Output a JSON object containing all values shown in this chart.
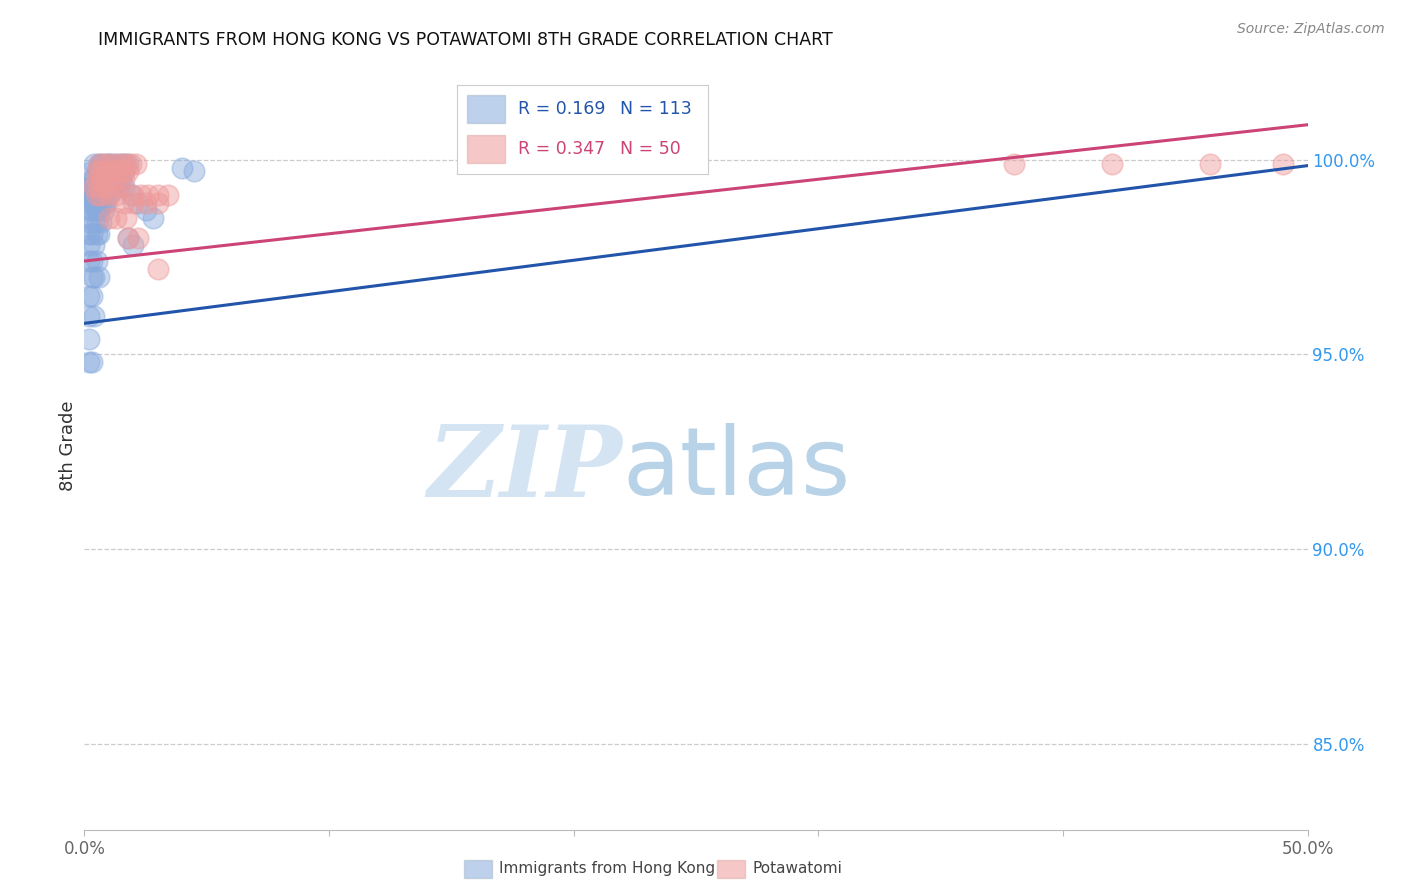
{
  "title": "IMMIGRANTS FROM HONG KONG VS POTAWATOMI 8TH GRADE CORRELATION CHART",
  "source": "Source: ZipAtlas.com",
  "ylabel": "8th Grade",
  "right_yticks": [
    0.85,
    0.9,
    0.95,
    1.0
  ],
  "right_yticklabels": [
    "85.0%",
    "90.0%",
    "95.0%",
    "100.0%"
  ],
  "xticks": [
    0.0,
    0.1,
    0.2,
    0.3,
    0.4,
    0.5
  ],
  "xticklabels": [
    "0.0%",
    "",
    "",
    "",
    "",
    "50.0%"
  ],
  "legend1_R": "0.169",
  "legend1_N": "113",
  "legend2_R": "0.347",
  "legend2_N": "50",
  "blue_color": "#88AADD",
  "pink_color": "#EE9999",
  "blue_line_color": "#2255AA",
  "pink_line_color": "#CC4477",
  "xmin": 0.0,
  "xmax": 0.5,
  "ymin": 0.828,
  "ymax": 1.025,
  "blue_trendline_x": [
    0.0,
    0.5
  ],
  "blue_trendline_y": [
    0.958,
    0.9985
  ],
  "pink_trendline_x": [
    0.0,
    0.5
  ],
  "pink_trendline_y": [
    0.974,
    1.009
  ],
  "blue_x": [
    0.004,
    0.006,
    0.007,
    0.009,
    0.01,
    0.011,
    0.013,
    0.015,
    0.016,
    0.018,
    0.003,
    0.005,
    0.007,
    0.009,
    0.011,
    0.012,
    0.014,
    0.016,
    0.003,
    0.004,
    0.006,
    0.008,
    0.01,
    0.012,
    0.013,
    0.015,
    0.002,
    0.003,
    0.005,
    0.006,
    0.007,
    0.009,
    0.01,
    0.011,
    0.013,
    0.014,
    0.002,
    0.003,
    0.004,
    0.006,
    0.007,
    0.009,
    0.01,
    0.002,
    0.003,
    0.004,
    0.005,
    0.007,
    0.008,
    0.009,
    0.002,
    0.003,
    0.005,
    0.006,
    0.008,
    0.002,
    0.004,
    0.005,
    0.007,
    0.002,
    0.003,
    0.005,
    0.006,
    0.002,
    0.004,
    0.002,
    0.003,
    0.005,
    0.003,
    0.004,
    0.006,
    0.002,
    0.003,
    0.002,
    0.004,
    0.002,
    0.002,
    0.003,
    0.016,
    0.019,
    0.022,
    0.025,
    0.028,
    0.018,
    0.02,
    0.04,
    0.045
  ],
  "blue_y": [
    0.999,
    0.999,
    0.999,
    0.999,
    0.999,
    0.999,
    0.999,
    0.999,
    0.999,
    0.999,
    0.997,
    0.997,
    0.997,
    0.997,
    0.997,
    0.997,
    0.997,
    0.997,
    0.995,
    0.995,
    0.995,
    0.995,
    0.995,
    0.995,
    0.995,
    0.995,
    0.993,
    0.993,
    0.993,
    0.993,
    0.993,
    0.993,
    0.993,
    0.993,
    0.993,
    0.993,
    0.991,
    0.991,
    0.991,
    0.991,
    0.991,
    0.991,
    0.991,
    0.989,
    0.989,
    0.989,
    0.989,
    0.989,
    0.989,
    0.989,
    0.987,
    0.987,
    0.987,
    0.987,
    0.987,
    0.984,
    0.984,
    0.984,
    0.984,
    0.981,
    0.981,
    0.981,
    0.981,
    0.978,
    0.978,
    0.974,
    0.974,
    0.974,
    0.97,
    0.97,
    0.97,
    0.965,
    0.965,
    0.96,
    0.96,
    0.954,
    0.948,
    0.948,
    0.993,
    0.991,
    0.989,
    0.987,
    0.985,
    0.98,
    0.978,
    0.998,
    0.997
  ],
  "pink_x": [
    0.006,
    0.008,
    0.01,
    0.013,
    0.015,
    0.017,
    0.019,
    0.021,
    0.005,
    0.007,
    0.009,
    0.011,
    0.014,
    0.016,
    0.018,
    0.005,
    0.007,
    0.01,
    0.013,
    0.016,
    0.004,
    0.006,
    0.009,
    0.012,
    0.015,
    0.005,
    0.007,
    0.01,
    0.013,
    0.02,
    0.023,
    0.026,
    0.03,
    0.034,
    0.016,
    0.02,
    0.025,
    0.03,
    0.01,
    0.013,
    0.017,
    0.018,
    0.022,
    0.03,
    0.38,
    0.42,
    0.46,
    0.49
  ],
  "pink_y": [
    0.999,
    0.999,
    0.999,
    0.999,
    0.999,
    0.999,
    0.999,
    0.999,
    0.997,
    0.997,
    0.997,
    0.997,
    0.997,
    0.997,
    0.997,
    0.995,
    0.995,
    0.995,
    0.995,
    0.995,
    0.993,
    0.993,
    0.993,
    0.993,
    0.993,
    0.991,
    0.991,
    0.991,
    0.991,
    0.991,
    0.991,
    0.991,
    0.991,
    0.991,
    0.989,
    0.989,
    0.989,
    0.989,
    0.985,
    0.985,
    0.985,
    0.98,
    0.98,
    0.972,
    0.999,
    0.999,
    0.999,
    0.999
  ]
}
